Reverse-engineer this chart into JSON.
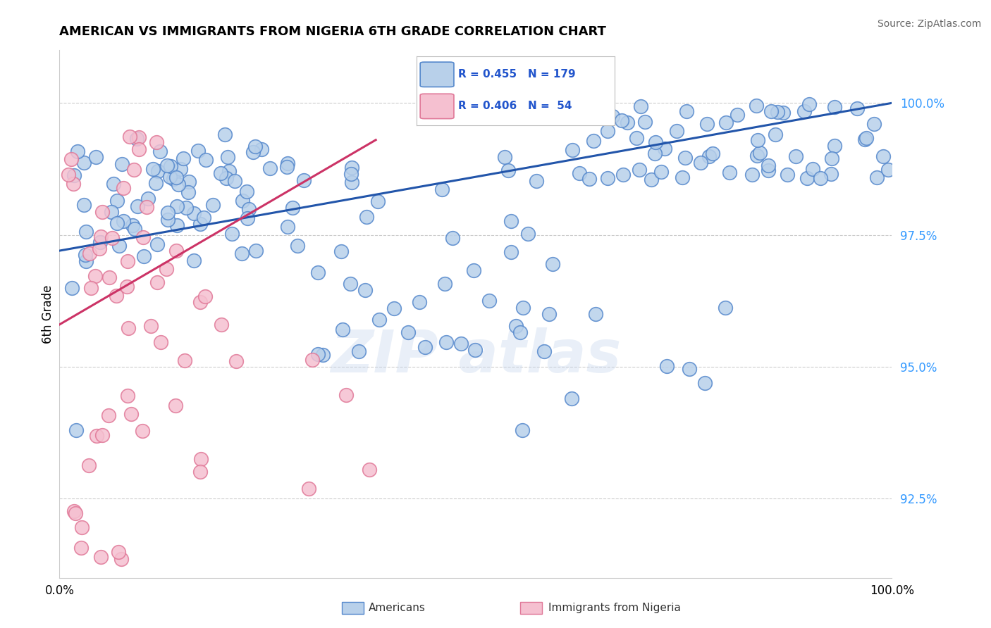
{
  "title": "AMERICAN VS IMMIGRANTS FROM NIGERIA 6TH GRADE CORRELATION CHART",
  "source": "Source: ZipAtlas.com",
  "ylabel": "6th Grade",
  "xmin": 0.0,
  "xmax": 100.0,
  "ymin": 91.0,
  "ymax": 101.0,
  "yticks": [
    92.5,
    95.0,
    97.5,
    100.0
  ],
  "blue_color": "#b8d0ea",
  "blue_edge": "#5588cc",
  "pink_color": "#f5c0d0",
  "pink_edge": "#e07898",
  "trend_blue": "#2255aa",
  "trend_pink": "#cc3366",
  "background_color": "#ffffff",
  "grid_color": "#cccccc",
  "legend_blue_R": "R = 0.455",
  "legend_blue_N": "N = 179",
  "legend_pink_R": "R = 0.406",
  "legend_pink_N": "N =  54",
  "blue_trend_x0": 0.0,
  "blue_trend_y0": 97.2,
  "blue_trend_x1": 100.0,
  "blue_trend_y1": 100.0,
  "pink_trend_x0": 0.0,
  "pink_trend_y0": 95.8,
  "pink_trend_x1": 38.0,
  "pink_trend_y1": 99.3
}
